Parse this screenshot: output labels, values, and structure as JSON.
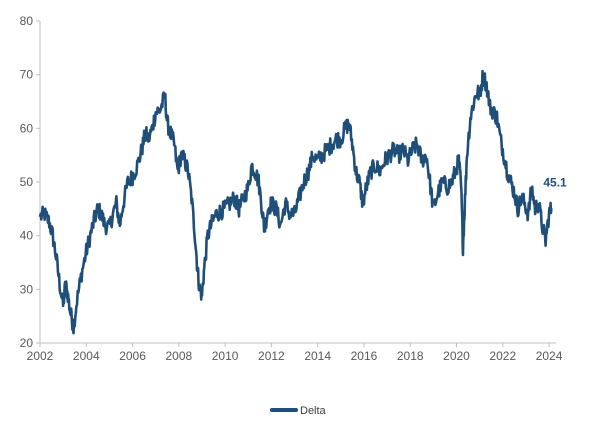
{
  "chart_data": {
    "type": "line",
    "title": "",
    "xlabel": "",
    "ylabel": "",
    "xlim": [
      2002,
      2024.3
    ],
    "ylim": [
      20,
      80
    ],
    "x_ticks": [
      "2002",
      "2004",
      "2006",
      "2008",
      "2010",
      "2012",
      "2014",
      "2016",
      "2018",
      "2020",
      "2022",
      "2024"
    ],
    "y_ticks": [
      "20",
      "30",
      "40",
      "50",
      "60",
      "70",
      "80"
    ],
    "grid": false,
    "legend_position": "bottom",
    "end_label": "45.1",
    "series": [
      {
        "name": "Delta",
        "color": "#1F4E79",
        "x": [
          2002.0,
          2002.2,
          2002.4,
          2002.55,
          2002.7,
          2002.85,
          2003.0,
          2003.1,
          2003.2,
          2003.3,
          2003.45,
          2003.6,
          2003.8,
          2004.0,
          2004.2,
          2004.35,
          2004.5,
          2004.65,
          2004.8,
          2005.0,
          2005.15,
          2005.3,
          2005.45,
          2005.6,
          2005.8,
          2006.0,
          2006.2,
          2006.4,
          2006.55,
          2006.7,
          2006.85,
          2007.0,
          2007.2,
          2007.4,
          2007.5,
          2007.65,
          2007.8,
          2007.95,
          2008.1,
          2008.25,
          2008.4,
          2008.55,
          2008.7,
          2008.8,
          2008.9,
          2009.0,
          2009.1,
          2009.25,
          2009.4,
          2009.6,
          2009.8,
          2010.0,
          2010.2,
          2010.4,
          2010.6,
          2010.8,
          2011.0,
          2011.15,
          2011.3,
          2011.45,
          2011.6,
          2011.7,
          2011.85,
          2012.0,
          2012.2,
          2012.4,
          2012.6,
          2012.8,
          2013.0,
          2013.2,
          2013.4,
          2013.6,
          2013.8,
          2014.0,
          2014.2,
          2014.4,
          2014.6,
          2014.8,
          2015.0,
          2015.2,
          2015.35,
          2015.5,
          2015.65,
          2015.8,
          2015.95,
          2016.1,
          2016.3,
          2016.5,
          2016.7,
          2016.9,
          2017.1,
          2017.3,
          2017.5,
          2017.7,
          2017.9,
          2018.1,
          2018.3,
          2018.5,
          2018.7,
          2018.85,
          2019.0,
          2019.2,
          2019.4,
          2019.6,
          2019.8,
          2019.95,
          2020.1,
          2020.2,
          2020.28,
          2020.35,
          2020.45,
          2020.6,
          2020.75,
          2020.9,
          2021.0,
          2021.15,
          2021.3,
          2021.45,
          2021.6,
          2021.75,
          2021.9,
          2022.05,
          2022.2,
          2022.35,
          2022.5,
          2022.65,
          2022.8,
          2022.95,
          2023.1,
          2023.25,
          2023.4,
          2023.55,
          2023.7,
          2023.85,
          2024.0,
          2024.1
        ],
        "values": [
          43.5,
          44.0,
          42.5,
          40.0,
          36.0,
          31.0,
          27.0,
          31.0,
          29.0,
          26.0,
          23.0,
          28.0,
          33.0,
          37.0,
          40.5,
          43.0,
          45.0,
          44.0,
          42.0,
          41.5,
          44.0,
          46.0,
          42.0,
          46.0,
          50.0,
          51.0,
          53.0,
          56.0,
          59.0,
          58.0,
          60.0,
          63.0,
          63.5,
          66.0,
          61.0,
          59.0,
          57.0,
          52.0,
          55.0,
          54.0,
          52.0,
          47.0,
          40.0,
          34.0,
          30.0,
          29.0,
          34.0,
          40.0,
          42.0,
          44.0,
          44.5,
          45.0,
          46.0,
          47.0,
          45.0,
          47.0,
          49.0,
          53.0,
          52.0,
          50.0,
          45.0,
          41.0,
          45.0,
          46.0,
          45.0,
          42.0,
          46.0,
          44.0,
          44.0,
          47.0,
          50.0,
          52.0,
          55.0,
          54.0,
          55.0,
          56.0,
          57.0,
          58.0,
          58.0,
          60.0,
          61.0,
          57.0,
          52.0,
          50.0,
          46.0,
          49.0,
          52.0,
          53.0,
          52.0,
          54.0,
          55.0,
          56.0,
          55.0,
          56.0,
          54.0,
          56.0,
          57.0,
          54.0,
          55.0,
          50.0,
          45.0,
          48.0,
          50.0,
          49.0,
          50.0,
          52.0,
          54.0,
          49.0,
          38.0,
          45.0,
          55.0,
          62.0,
          65.0,
          67.0,
          66.0,
          70.0,
          68.0,
          64.0,
          63.0,
          62.0,
          58.0,
          55.0,
          52.0,
          50.0,
          48.0,
          45.0,
          47.0,
          46.0,
          44.0,
          49.0,
          45.0,
          46.0,
          42.0,
          39.0,
          44.0,
          45.1
        ]
      }
    ]
  }
}
